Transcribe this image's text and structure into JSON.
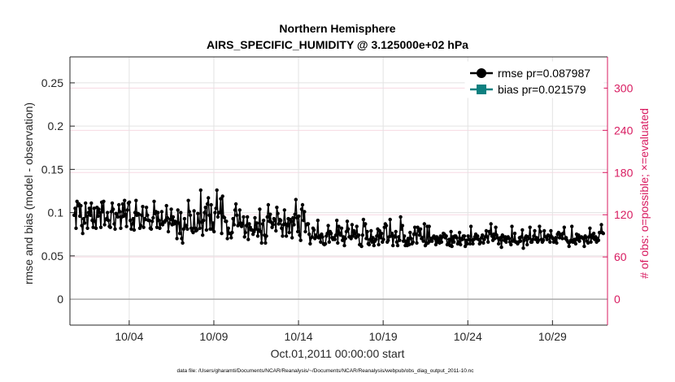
{
  "chart_data": {
    "type": "line",
    "title": "Northern Hemisphere",
    "subtitle": "AIRS_SPECIFIC_HUMIDITY @ 3.125000e+02 hPa",
    "xlabel": "Oct.01,2011 00:00:00 start",
    "ylabel": "rmse and bias (model - observation)",
    "ylabel_right": "# of obs: o=possible; ×=evaluated",
    "footnote": "data file: /Users/gharamti/Documents/NCAR/Reanalysis/~/Documents/NCAR/Reanalysis/webpub/obs_diag_output_2011-10.nc",
    "x_range_days": [
      0.5,
      32.25
    ],
    "x_ticks": [
      {
        "day": 4,
        "label": "10/04"
      },
      {
        "day": 9,
        "label": "10/09"
      },
      {
        "day": 14,
        "label": "10/14"
      },
      {
        "day": 19,
        "label": "10/19"
      },
      {
        "day": 24,
        "label": "10/24"
      },
      {
        "day": 29,
        "label": "10/29"
      }
    ],
    "ylim_left": [
      -0.03,
      0.28
    ],
    "y_ticks_left": [
      "0",
      "0.05",
      "0.1",
      "0.15",
      "0.2",
      "0.25"
    ],
    "ylim_right": [
      -36.9,
      344.4
    ],
    "y_ticks_right": [
      "0",
      "60",
      "120",
      "180",
      "240",
      "300"
    ],
    "legend": {
      "placement": "top-right",
      "entries": [
        {
          "label": "rmse pr=0.087987",
          "color": "#000000",
          "marker": "circle"
        },
        {
          "label": "bias pr=0.021579",
          "color": "#0e8080",
          "marker": "square"
        }
      ]
    },
    "series": [
      {
        "name": "rmse",
        "axis": "left",
        "color": "#000000",
        "values": [
          0.097,
          0.105,
          0.082,
          0.113,
          0.108,
          0.11,
          0.096,
          0.108,
          0.085,
          0.076,
          0.093,
          0.088,
          0.111,
          0.096,
          0.082,
          0.1,
          0.105,
          0.097,
          0.111,
          0.091,
          0.083,
          0.105,
          0.09,
          0.082,
          0.106,
          0.096,
          0.104,
          0.1,
          0.083,
          0.112,
          0.101,
          0.113,
          0.086,
          0.092,
          0.093,
          0.1,
          0.091,
          0.084,
          0.083,
          0.101,
          0.111,
          0.104,
          0.087,
          0.081,
          0.099,
          0.098,
          0.095,
          0.109,
          0.101,
          0.082,
          0.095,
          0.11,
          0.096,
          0.114,
          0.098,
          0.084,
          0.103,
          0.111,
          0.112,
          0.091,
          0.081,
          0.087,
          0.093,
          0.08,
          0.1,
          0.114,
          0.097,
          0.099,
          0.098,
          0.082,
          0.085,
          0.097,
          0.107,
          0.083,
          0.093,
          0.092,
          0.106,
          0.097,
          0.091,
          0.091,
          0.082,
          0.081,
          0.09,
          0.094,
          0.113,
          0.099,
          0.101,
          0.083,
          0.1,
          0.091,
          0.082,
          0.087,
          0.101,
          0.086,
          0.089,
          0.089,
          0.091,
          0.108,
          0.094,
          0.078,
          0.088,
          0.092,
          0.104,
          0.086,
          0.095,
          0.087,
          0.09,
          0.089,
          0.07,
          0.103,
          0.088,
          0.076,
          0.1,
          0.07,
          0.065,
          0.081,
          0.093,
          0.084,
          0.085,
          0.081,
          0.114,
          0.101,
          0.097,
          0.082,
          0.079,
          0.077,
          0.102,
          0.082,
          0.079,
          0.08,
          0.099,
          0.089,
          0.082,
          0.126,
          0.089,
          0.074,
          0.091,
          0.1,
          0.106,
          0.08,
          0.11,
          0.117,
          0.097,
          0.081,
          0.109,
          0.081,
          0.088,
          0.078,
          0.1,
          0.105,
          0.126,
          0.095,
          0.1,
          0.1,
          0.116,
          0.076,
          0.119,
          0.095,
          0.094,
          0.09,
          0.09,
          0.07,
          0.082,
          0.076,
          0.076,
          0.071,
          0.077,
          0.093,
          0.086,
          0.103,
          0.11,
          0.097,
          0.085,
          0.086,
          0.103,
          0.088,
          0.084,
          0.087,
          0.095,
          0.072,
          0.077,
          0.085,
          0.095,
          0.069,
          0.087,
          0.083,
          0.08,
          0.08,
          0.075,
          0.078,
          0.094,
          0.081,
          0.088,
          0.073,
          0.08,
          0.104,
          0.078,
          0.065,
          0.087,
          0.091,
          0.074,
          0.065,
          0.073,
          0.095,
          0.109,
          0.09,
          0.098,
          0.089,
          0.083,
          0.086,
          0.093,
          0.091,
          0.079,
          0.106,
          0.099,
          0.087,
          0.092,
          0.091,
          0.082,
          0.073,
          0.086,
          0.103,
          0.087,
          0.073,
          0.085,
          0.093,
          0.077,
          0.092,
          0.09,
          0.071,
          0.094,
          0.086,
          0.098,
          0.115,
          0.094,
          0.078,
          0.096,
          0.074,
          0.068,
          0.104,
          0.109,
          0.091,
          0.101,
          0.078,
          0.086,
          0.087,
          0.087,
          0.075,
          0.064,
          0.071,
          0.072,
          0.082,
          0.08,
          0.07,
          0.074,
          0.072,
          0.091,
          0.071,
          0.073,
          0.066,
          0.075,
          0.072,
          0.064,
          0.063,
          0.064,
          0.073,
          0.076,
          0.085,
          0.066,
          0.078,
          0.076,
          0.071,
          0.069,
          0.071,
          0.069,
          0.074,
          0.091,
          0.065,
          0.084,
          0.076,
          0.074,
          0.082,
          0.068,
          0.072,
          0.062,
          0.07,
          0.078,
          0.09,
          0.081,
          0.072,
          0.072,
          0.07,
          0.086,
          0.073,
          0.079,
          0.076,
          0.071,
          0.084,
          0.073,
          0.074,
          0.063,
          0.063,
          0.061,
          0.074,
          0.092,
          0.085,
          0.087,
          0.07,
          0.078,
          0.064,
          0.063,
          0.069,
          0.079,
          0.066,
          0.071,
          0.062,
          0.067,
          0.069,
          0.073,
          0.081,
          0.063,
          0.079,
          0.071,
          0.076,
          0.066,
          0.069,
          0.083,
          0.087,
          0.085,
          0.066,
          0.068,
          0.072,
          0.092,
          0.073,
          0.076,
          0.062,
          0.073,
          0.072,
          0.078,
          0.066,
          0.062,
          0.072,
          0.068,
          0.095,
          0.081,
          0.085,
          0.067,
          0.073,
          0.062,
          0.067,
          0.062,
          0.07,
          0.063,
          0.077,
          0.07,
          0.064,
          0.066,
          0.075,
          0.083,
          0.075,
          0.065,
          0.083,
          0.079,
          0.074,
          0.081,
          0.07,
          0.071,
          0.067,
          0.087,
          0.062,
          0.064,
          0.084,
          0.065,
          0.084,
          0.067,
          0.07,
          0.067,
          0.071,
          0.073,
          0.07,
          0.063,
          0.072,
          0.066,
          0.07,
          0.065,
          0.073,
          0.066,
          0.072,
          0.076,
          0.075,
          0.071,
          0.073,
          0.063,
          0.065,
          0.069,
          0.062,
          0.078,
          0.061,
          0.072,
          0.066,
          0.073,
          0.073,
          0.071,
          0.064,
          0.066,
          0.077,
          0.063,
          0.07,
          0.069,
          0.073,
          0.073,
          0.061,
          0.068,
          0.064,
          0.073,
          0.069,
          0.064,
          0.084,
          0.068,
          0.064,
          0.069,
          0.072,
          0.075,
          0.07,
          0.073,
          0.069,
          0.064,
          0.066,
          0.071,
          0.074,
          0.065,
          0.069,
          0.072,
          0.079,
          0.072,
          0.066,
          0.078,
          0.076,
          0.087,
          0.073,
          0.068,
          0.075,
          0.07,
          0.083,
          0.074,
          0.071,
          0.064,
          0.069,
          0.071,
          0.06,
          0.074,
          0.072,
          0.068,
          0.072,
          0.066,
          0.07,
          0.072,
          0.07,
          0.066,
          0.063,
          0.084,
          0.067,
          0.068,
          0.076,
          0.066,
          0.066,
          0.064,
          0.066,
          0.071,
          0.067,
          0.072,
          0.08,
          0.059,
          0.068,
          0.071,
          0.073,
          0.063,
          0.072,
          0.07,
          0.083,
          0.066,
          0.066,
          0.069,
          0.073,
          0.079,
          0.069,
          0.071,
          0.066,
          0.068,
          0.084,
          0.078,
          0.069,
          0.066,
          0.068,
          0.079,
          0.072,
          0.072,
          0.069,
          0.074,
          0.073,
          0.066,
          0.079,
          0.072,
          0.07,
          0.066,
          0.067,
          0.071,
          0.065,
          0.075,
          0.077,
          0.071,
          0.074,
          0.075,
          0.07,
          0.076,
          0.083,
          0.07,
          0.071,
          0.068,
          0.066,
          0.061,
          0.066,
          0.068,
          0.084,
          0.066,
          0.066,
          0.069,
          0.064,
          0.075,
          0.069,
          0.074,
          0.067,
          0.071,
          0.072,
          0.071,
          0.07,
          0.061,
          0.073,
          0.071,
          0.067,
          0.065,
          0.072,
          0.082,
          0.066,
          0.074,
          0.071,
          0.076,
          0.069,
          0.072,
          0.066,
          0.07,
          0.068,
          0.077,
          0.077,
          0.086,
          0.077,
          0.076
        ]
      }
    ]
  }
}
